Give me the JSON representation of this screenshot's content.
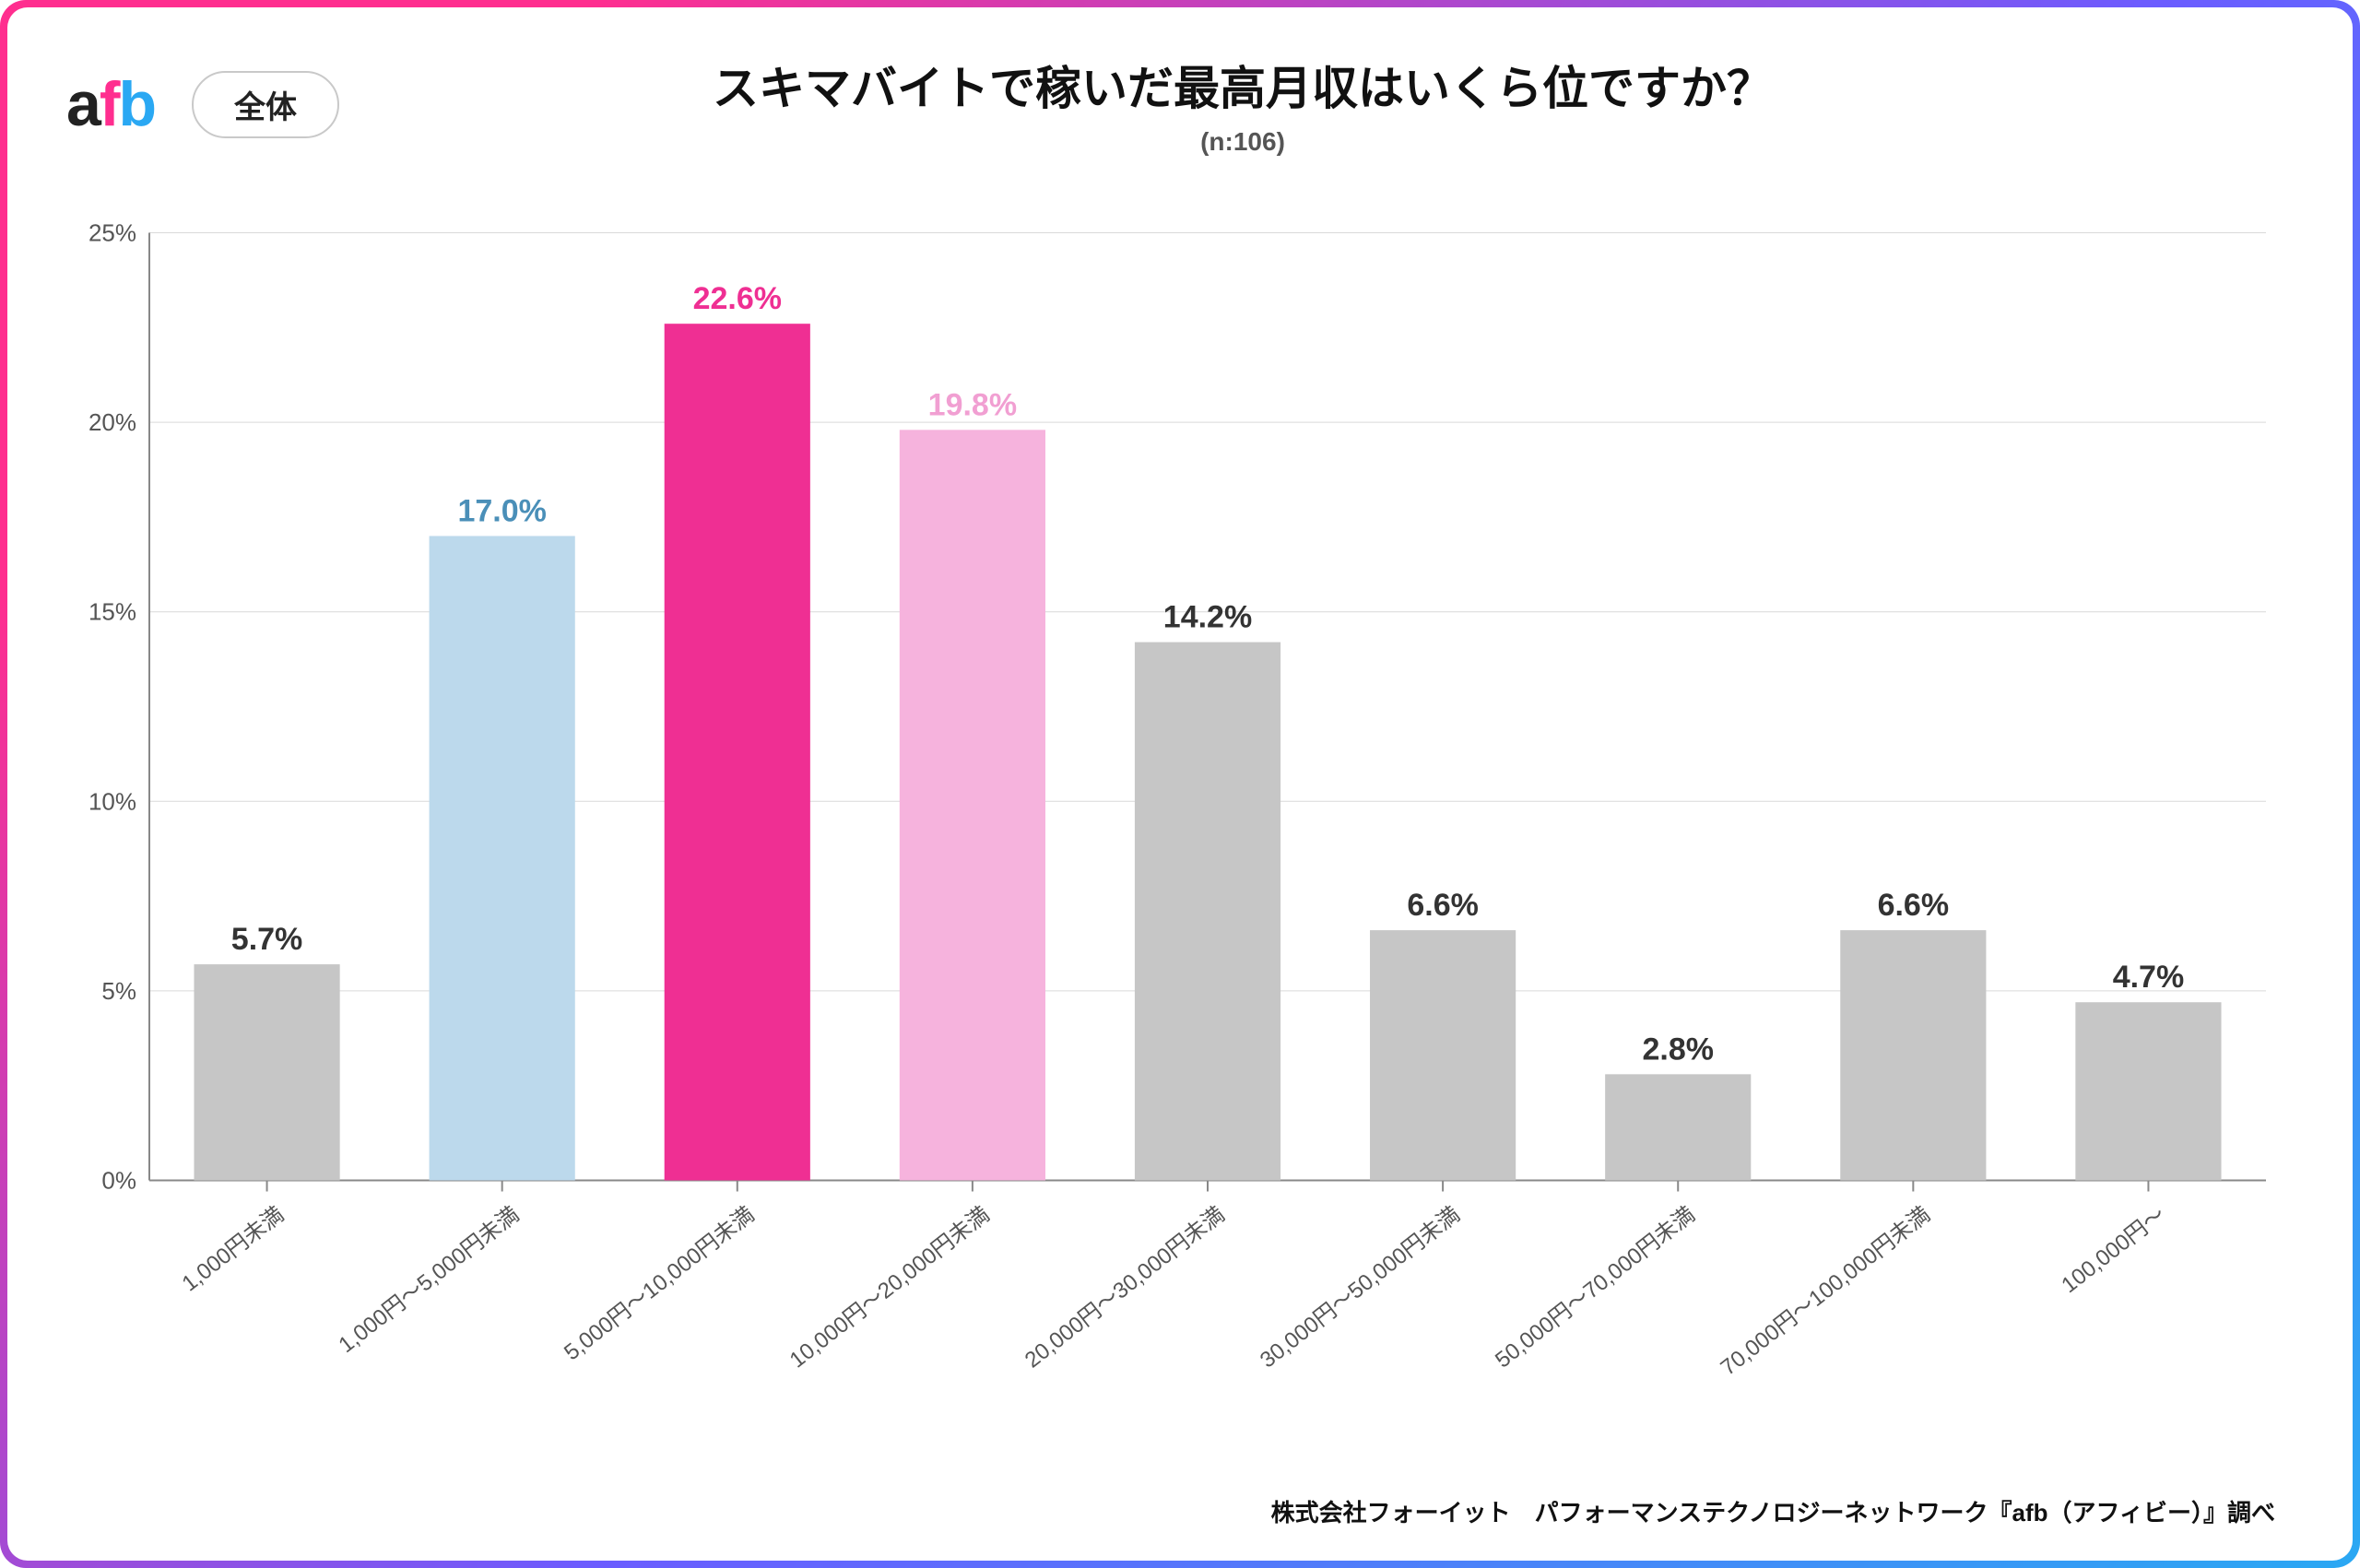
{
  "logo": {
    "a": "a",
    "f": "f",
    "b": "b"
  },
  "pill_label": "全体",
  "title": "スキマバイトで稼いだ最高月収はいくら位ですか？",
  "subtitle": "(n:106)",
  "footer": "株式会社フォーイット　パフォーマンステクノロジーネットワーク『afb（アフィビー）』調べ",
  "chart": {
    "type": "bar",
    "ylim": [
      0,
      25
    ],
    "ytick_step": 5,
    "ytick_suffix": "%",
    "grid_color": "#d9d9d9",
    "axis_color": "#888888",
    "background_color": "#ffffff",
    "bar_width_ratio": 0.62,
    "label_fontsize": 34,
    "tick_fontsize": 26,
    "xlabel_fontsize": 24,
    "xlabel_rotation_deg": -38,
    "default_bar_color": "#c6c6c6",
    "default_label_color": "#333333",
    "categories": [
      "1,000円未満",
      "1,000円～5,000円未満",
      "5,000円～10,000円未満",
      "10,000円～20,000円未満",
      "20,000円～30,000円未満",
      "30,000円～50,000円未満",
      "50,000円～70,000円未満",
      "70,000円～100,000円未満",
      "100,000円～"
    ],
    "values": [
      5.7,
      17.0,
      22.6,
      19.8,
      14.2,
      6.6,
      2.8,
      6.6,
      4.7
    ],
    "value_labels": [
      "5.7%",
      "17.0%",
      "22.6%",
      "19.8%",
      "14.2%",
      "6.6%",
      "2.8%",
      "6.6%",
      "4.7%"
    ],
    "bar_colors": [
      "#c6c6c6",
      "#bcd9ec",
      "#ef2f93",
      "#f6b3dd",
      "#c6c6c6",
      "#c6c6c6",
      "#c6c6c6",
      "#c6c6c6",
      "#c6c6c6"
    ],
    "label_colors": [
      "#333333",
      "#4a8fb8",
      "#ef2f93",
      "#f19fd2",
      "#333333",
      "#333333",
      "#333333",
      "#333333",
      "#333333"
    ]
  }
}
